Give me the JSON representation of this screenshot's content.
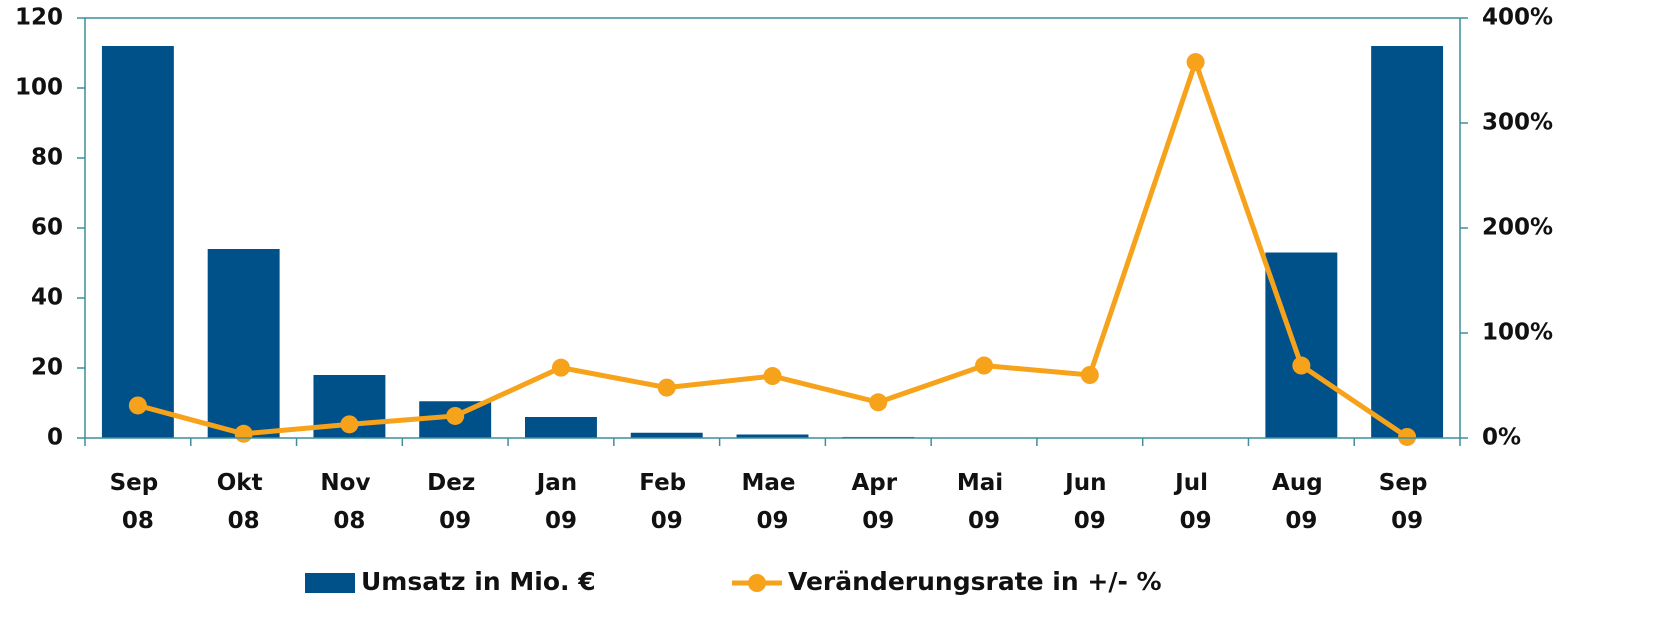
{
  "chart_data": {
    "type": "bar-line",
    "categories": [
      "Sep 08",
      "Okt 08",
      "Nov 08",
      "Dez 09",
      "Jan 09",
      "Feb 09",
      "Mae 09",
      "Apr 09",
      "Mai 09",
      "Jun 09",
      "Jul 09",
      "Aug 09",
      "Sep 09"
    ],
    "series": [
      {
        "name": "Umsatz in Mio. €",
        "type": "bar",
        "color": "#00508a",
        "values": [
          112,
          54,
          18,
          10.5,
          6,
          1.5,
          1,
          0.3,
          0,
          0,
          0,
          53,
          112
        ]
      },
      {
        "name": "Veränderungsrate in +/- %",
        "type": "line",
        "axis": "y2",
        "color": "#f7a21b",
        "values": [
          31,
          4,
          13,
          21,
          67,
          48,
          59,
          34,
          69,
          60,
          358,
          69,
          1
        ]
      }
    ],
    "ylim": [
      0,
      120
    ],
    "yticks": [
      0,
      20,
      40,
      60,
      80,
      100,
      120
    ],
    "y2lim": [
      0,
      400
    ],
    "y2ticks": [
      {
        "value": 0,
        "label": "0%"
      },
      {
        "value": 100,
        "label": "100%"
      },
      {
        "value": 200,
        "label": "200%"
      },
      {
        "value": 300,
        "label": "300%"
      },
      {
        "value": 400,
        "label": "400%"
      }
    ],
    "legend": "bottom"
  }
}
